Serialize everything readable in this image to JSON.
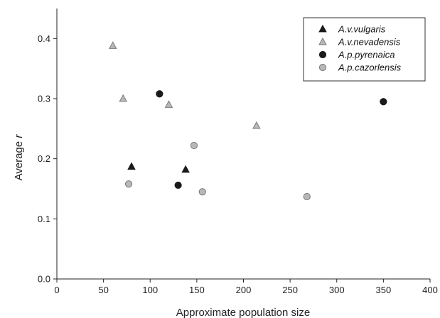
{
  "chart_data": {
    "type": "scatter",
    "xlabel": "Approximate population size",
    "ylabel_main": "Average ",
    "ylabel_italic": "r",
    "xlim": [
      0,
      400
    ],
    "ylim": [
      0.0,
      0.45
    ],
    "xticks": [
      0,
      50,
      100,
      150,
      200,
      250,
      300,
      350,
      400
    ],
    "xtick_labels": [
      "0",
      "50",
      "100",
      "150",
      "200",
      "250",
      "300",
      "350",
      "400"
    ],
    "yticks": [
      0.0,
      0.1,
      0.2,
      0.3,
      0.4
    ],
    "ytick_labels": [
      "0.0",
      "0.1",
      "0.2",
      "0.3",
      "0.4"
    ],
    "grid": false,
    "legend_position": "top-right",
    "series": [
      {
        "name": "A.v.vulgaris",
        "marker": "triangle",
        "color": "#1a1a1a",
        "stroke": "#1a1a1a",
        "points": [
          [
            80,
            0.187
          ],
          [
            138,
            0.182
          ]
        ]
      },
      {
        "name": "A.v.nevadensis",
        "marker": "triangle",
        "color": "#b8b8b8",
        "stroke": "#7a7a7a",
        "points": [
          [
            60,
            0.388
          ],
          [
            71,
            0.3
          ],
          [
            120,
            0.29
          ],
          [
            214,
            0.255
          ]
        ]
      },
      {
        "name": "A.p.pyrenaica",
        "marker": "circle",
        "color": "#1a1a1a",
        "stroke": "#1a1a1a",
        "points": [
          [
            110,
            0.308
          ],
          [
            130,
            0.156
          ],
          [
            350,
            0.295
          ]
        ]
      },
      {
        "name": "A.p.cazorlensis",
        "marker": "circle",
        "color": "#b8b8b8",
        "stroke": "#7a7a7a",
        "points": [
          [
            77,
            0.158
          ],
          [
            147,
            0.222
          ],
          [
            156,
            0.145
          ],
          [
            268,
            0.137
          ]
        ]
      }
    ]
  }
}
